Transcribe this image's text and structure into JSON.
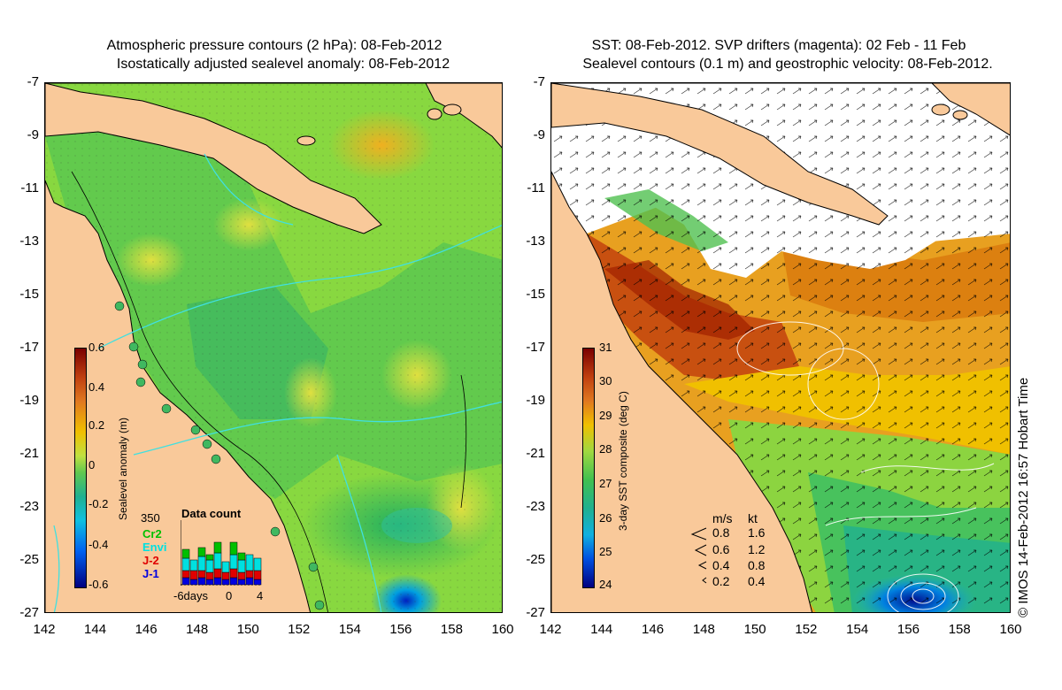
{
  "left_panel": {
    "title_line1": "Atmospheric pressure contours (2 hPa): 08-Feb-2012",
    "title_line2": "Isostatically adjusted sealevel anomaly: 08-Feb-2012",
    "colorbar": {
      "label": "Sealevel anomaly (m)",
      "ticks": [
        "0.6",
        "0.4",
        "0.2",
        "0",
        "-0.2",
        "-0.4",
        "-0.6"
      ]
    },
    "data_count": {
      "title": "Data count",
      "max_label": "350",
      "satellites": [
        {
          "name": "Cr2",
          "color": "#00c000"
        },
        {
          "name": "Envi",
          "color": "#00e0e0"
        },
        {
          "name": "J-2",
          "color": "#e00000"
        },
        {
          "name": "J-1",
          "color": "#0000e0"
        }
      ],
      "x_labels": [
        "-6days",
        "0",
        "4"
      ]
    }
  },
  "right_panel": {
    "title_line1": "SST: 08-Feb-2012. SVP drifters (magenta): 02 Feb - 11 Feb",
    "title_line2": "Sealevel contours (0.1 m) and geostrophic velocity: 08-Feb-2012.",
    "colorbar": {
      "label": "3-day SST composite (deg C)",
      "ticks": [
        "31",
        "30",
        "29",
        "28",
        "27",
        "26",
        "25",
        "24"
      ]
    },
    "velocity_legend": {
      "header_ms": "m/s",
      "header_kt": "kt",
      "rows": [
        {
          "ms": "0.8",
          "kt": "1.6"
        },
        {
          "ms": "0.6",
          "kt": "1.2"
        },
        {
          "ms": "0.4",
          "kt": "0.8"
        },
        {
          "ms": "0.2",
          "kt": "0.4"
        }
      ]
    }
  },
  "axes": {
    "y_ticks": [
      "-7",
      "-9",
      "-11",
      "-13",
      "-15",
      "-17",
      "-19",
      "-21",
      "-23",
      "-25",
      "-27"
    ],
    "x_ticks": [
      "142",
      "144",
      "146",
      "148",
      "150",
      "152",
      "154",
      "156",
      "158",
      "160"
    ]
  },
  "credit": "© IMOS 14-Feb-2012 16:57 Hobart Time",
  "colors": {
    "land": "#f9c99a",
    "coast": "#000000"
  }
}
